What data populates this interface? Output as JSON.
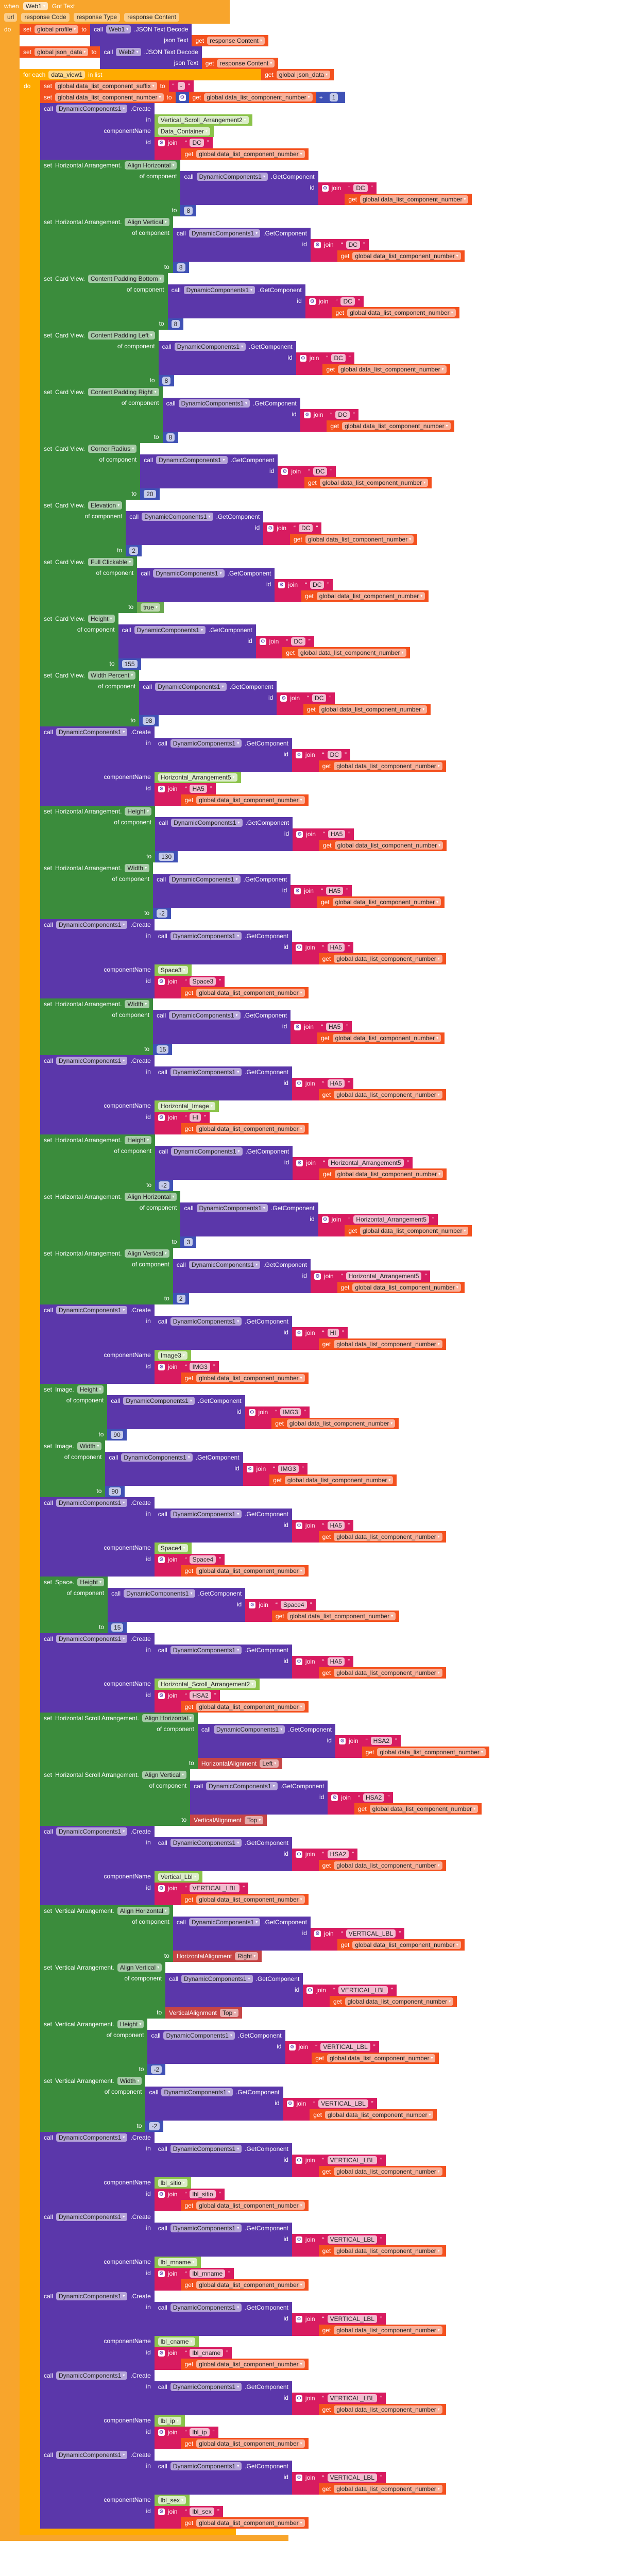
{
  "colors": {
    "event": "#f8a52c",
    "foreach": "#ffab00",
    "variable": "#f4511e",
    "component": "#5b37aa",
    "setter": "#3b8c3c",
    "text": "#d81b60",
    "math": "#3f51b5",
    "compref": "#8bc34a",
    "enum": "#c64545",
    "logic": "#6aa84f"
  },
  "labels": {
    "when": "when",
    "do": "do",
    "set": "set",
    "to": "to",
    "call": "call",
    "get": "get",
    "join": "join",
    "in": "in",
    "componentName": "componentName",
    "id": "id",
    "of_component": "of component",
    "create": ".Create",
    "getcomponent": ".GetComponent",
    "for_each": "for each",
    "in_list": "in list",
    "plus": "+",
    "open_quote": "“",
    "close_quote": "”",
    "dc": "DynamicComponents1",
    "num_var": "global data_list_component_number"
  },
  "event": {
    "component": "Web1",
    "name": "Got Text",
    "params": [
      "url",
      "response Code",
      "response Type",
      "response Content"
    ],
    "body": [
      {
        "type": "setvar",
        "var": "global profile",
        "value": {
          "type": "call_json",
          "comp": "Web1",
          "method": ".JSON Text Decode",
          "arg_label": "json Text",
          "arg": {
            "type": "get",
            "var": "response Content"
          }
        }
      },
      {
        "type": "setvar",
        "var": "global json_data",
        "value": {
          "type": "call_json",
          "comp": "Web2",
          "method": ".JSON Text Decode",
          "arg_label": "json Text",
          "arg": {
            "type": "get",
            "var": "response Content"
          }
        }
      },
      {
        "type": "foreach",
        "var": "data_view1",
        "list": {
          "type": "get",
          "var": "global json_data"
        },
        "do": [
          {
            "type": "setvar",
            "var": "global data_list_component_suffix",
            "value": {
              "type": "text",
              "value": "-"
            }
          },
          {
            "type": "setvar",
            "var": "global data_list_component_number",
            "value": {
              "type": "add",
              "a": {
                "type": "get",
                "var": "global data_list_component_number"
              },
              "b": {
                "type": "number",
                "value": "1"
              }
            }
          },
          {
            "type": "create",
            "in": {
              "type": "compref",
              "value": "Vertical_Scroll_Arrangement2"
            },
            "name": "Data_Container",
            "prefix": "DC"
          },
          {
            "type": "setprop",
            "cls": "Horizontal Arrangement.",
            "prop": "Align Horizontal",
            "target": "DC",
            "value": {
              "type": "number",
              "value": "8"
            }
          },
          {
            "type": "setprop",
            "cls": "Horizontal Arrangement.",
            "prop": "Align Vertical",
            "target": "DC",
            "value": {
              "type": "number",
              "value": "8"
            }
          },
          {
            "type": "setprop",
            "cls": "Card View.",
            "prop": "Content Padding Bottom",
            "target": "DC",
            "value": {
              "type": "number",
              "value": "8"
            }
          },
          {
            "type": "setprop",
            "cls": "Card View.",
            "prop": "Content Padding Left",
            "target": "DC",
            "value": {
              "type": "number",
              "value": "8"
            }
          },
          {
            "type": "setprop",
            "cls": "Card View.",
            "prop": "Content Padding Right",
            "target": "DC",
            "value": {
              "type": "number",
              "value": "8"
            }
          },
          {
            "type": "setprop",
            "cls": "Card View.",
            "prop": "Corner Radius",
            "target": "DC",
            "value": {
              "type": "number",
              "value": "20"
            }
          },
          {
            "type": "setprop",
            "cls": "Card View.",
            "prop": "Elevation",
            "target": "DC",
            "value": {
              "type": "number",
              "value": "2"
            }
          },
          {
            "type": "setprop",
            "cls": "Card View.",
            "prop": "Full Clickable",
            "target": "DC",
            "value": {
              "type": "bool",
              "value": "true"
            }
          },
          {
            "type": "setprop",
            "cls": "Card View.",
            "prop": "Height",
            "target": "DC",
            "value": {
              "type": "number",
              "value": "155"
            }
          },
          {
            "type": "setprop",
            "cls": "Card View.",
            "prop": "Width Percent",
            "target": "DC",
            "value": {
              "type": "number",
              "value": "98"
            }
          },
          {
            "type": "create",
            "in": {
              "type": "getcomp",
              "prefix": "DC"
            },
            "name": "Horizontal_Arrangement5",
            "prefix": "HA5"
          },
          {
            "type": "setprop",
            "cls": "Horizontal Arrangement.",
            "prop": "Height",
            "target": "HA5",
            "value": {
              "type": "number",
              "value": "130"
            }
          },
          {
            "type": "setprop",
            "cls": "Horizontal Arrangement.",
            "prop": "Width",
            "target": "HA5",
            "value": {
              "type": "number",
              "value": "-2"
            }
          },
          {
            "type": "create",
            "in": {
              "type": "getcomp",
              "prefix": "HA5"
            },
            "name": "Space3",
            "prefix": "Space3"
          },
          {
            "type": "setprop",
            "cls": "Horizontal Arrangement.",
            "prop": "Width",
            "target": "HA5",
            "value": {
              "type": "number",
              "value": "15"
            }
          },
          {
            "type": "create",
            "in": {
              "type": "getcomp",
              "prefix": "HA5"
            },
            "name": "Horizontal_Image",
            "prefix": "HI"
          },
          {
            "type": "setprop",
            "cls": "Horizontal Arrangement.",
            "prop": "Height",
            "target": "Horizontal_Arrangement5",
            "value": {
              "type": "number",
              "value": "-2"
            }
          },
          {
            "type": "setprop",
            "cls": "Horizontal Arrangement.",
            "prop": "Align Horizontal",
            "target": "Horizontal_Arrangement5",
            "value": {
              "type": "number",
              "value": "3"
            }
          },
          {
            "type": "setprop",
            "cls": "Horizontal Arrangement.",
            "prop": "Align Vertical",
            "target": "Horizontal_Arrangement5",
            "value": {
              "type": "number",
              "value": "2"
            }
          },
          {
            "type": "create",
            "in": {
              "type": "getcomp",
              "prefix": "HI"
            },
            "name": "Image3",
            "prefix": "IMG3"
          },
          {
            "type": "setprop",
            "cls": "Image.",
            "prop": "Height",
            "target": "IMG3",
            "value": {
              "type": "number",
              "value": "90"
            }
          },
          {
            "type": "setprop",
            "cls": "Image.",
            "prop": "Width",
            "target": "IMG3",
            "value": {
              "type": "number",
              "value": "90"
            }
          },
          {
            "type": "create",
            "in": {
              "type": "getcomp",
              "prefix": "HA5"
            },
            "name": "Space4",
            "prefix": "Space4"
          },
          {
            "type": "setprop",
            "cls": "Space.",
            "prop": "Height",
            "target": "Space4",
            "value": {
              "type": "number",
              "value": "15"
            }
          },
          {
            "type": "create",
            "in": {
              "type": "getcomp",
              "prefix": "HA5"
            },
            "name": "Horizontal_Scroll_Arrangement2",
            "prefix": "HSA2"
          },
          {
            "type": "setprop",
            "cls": "Horizontal Scroll Arrangement.",
            "prop": "Align Horizontal",
            "target": "HSA2",
            "value": {
              "type": "enum",
              "cls": "HorizontalAlignment",
              "value": "Left"
            }
          },
          {
            "type": "setprop",
            "cls": "Horizontal Scroll Arrangement.",
            "prop": "Align Vertical",
            "target": "HSA2",
            "value": {
              "type": "enum",
              "cls": "VerticalAlignment",
              "value": "Top"
            }
          },
          {
            "type": "create",
            "in": {
              "type": "getcomp",
              "prefix": "HSA2"
            },
            "name": "Vertical_Lbl",
            "prefix": "VERTICAL_LBL"
          },
          {
            "type": "setprop",
            "cls": "Vertical Arrangement.",
            "prop": "Align Horizontal",
            "target": "VERTICAL_LBL",
            "value": {
              "type": "enum",
              "cls": "HorizontalAlignment",
              "value": "Right"
            }
          },
          {
            "type": "setprop",
            "cls": "Vertical Arrangement.",
            "prop": "Align Vertical",
            "target": "VERTICAL_LBL",
            "value": {
              "type": "enum",
              "cls": "VerticalAlignment",
              "value": "Top"
            }
          },
          {
            "type": "setprop",
            "cls": "Vertical Arrangement.",
            "prop": "Height",
            "target": "VERTICAL_LBL",
            "value": {
              "type": "number",
              "value": "-2"
            }
          },
          {
            "type": "setprop",
            "cls": "Vertical Arrangement.",
            "prop": "Width",
            "target": "VERTICAL_LBL",
            "value": {
              "type": "number",
              "value": "-2"
            }
          },
          {
            "type": "create",
            "in": {
              "type": "getcomp",
              "prefix": "VERTICAL_LBL"
            },
            "name": "lbl_sitio",
            "prefix": "lbl_sitio"
          },
          {
            "type": "create",
            "in": {
              "type": "getcomp",
              "prefix": "VERTICAL_LBL"
            },
            "name": "lbl_mname",
            "prefix": "lbl_mname"
          },
          {
            "type": "create",
            "in": {
              "type": "getcomp",
              "prefix": "VERTICAL_LBL"
            },
            "name": "lbl_cname",
            "prefix": "lbl_cname"
          },
          {
            "type": "create",
            "in": {
              "type": "getcomp",
              "prefix": "VERTICAL_LBL"
            },
            "name": "lbl_ip",
            "prefix": "lbl_ip"
          },
          {
            "type": "create",
            "in": {
              "type": "getcomp",
              "prefix": "VERTICAL_LBL"
            },
            "name": "lbl_sex",
            "prefix": "lbl_sex"
          }
        ]
      }
    ]
  }
}
